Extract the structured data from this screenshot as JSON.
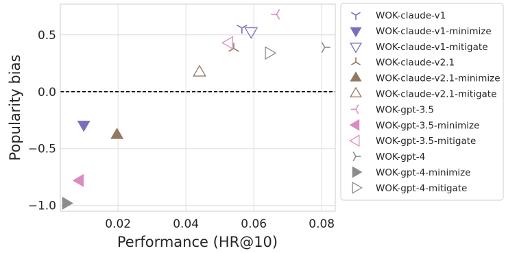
{
  "chart_data": {
    "type": "scatter",
    "title": "",
    "xlabel": "Performance (HR@10)",
    "ylabel": "Popularity bias",
    "xlim": [
      0.003,
      0.084
    ],
    "ylim": [
      -1.05,
      0.77
    ],
    "xticks": [
      0.02,
      0.04,
      0.06,
      0.08
    ],
    "xtick_labels": [
      "0.02",
      "0.04",
      "0.06",
      "0.08"
    ],
    "yticks": [
      -1.0,
      -0.5,
      0.0,
      0.5
    ],
    "ytick_labels": [
      "−1.0",
      "−0.5",
      "0.0",
      "0.5"
    ],
    "grid": true,
    "reference_line": {
      "y": 0.0,
      "style": "dashed",
      "color": "#000000"
    },
    "legend_position": "outside-right",
    "series": [
      {
        "name": "WOK-claude-v1",
        "marker": "tri_down",
        "filled": true,
        "color": "#7b6fbd",
        "x": 0.0565,
        "y": 0.56
      },
      {
        "name": "WOK-claude-v1-minimize",
        "marker": "triangle_down",
        "filled": true,
        "color": "#7b6fbd",
        "x": 0.0099,
        "y": -0.29
      },
      {
        "name": "WOK-claude-v1-mitigate",
        "marker": "triangle_down",
        "filled": false,
        "color": "#7b6fbd",
        "x": 0.0592,
        "y": 0.53
      },
      {
        "name": "WOK-claude-v2.1",
        "marker": "tri_up",
        "filled": true,
        "color": "#937860",
        "x": 0.0541,
        "y": 0.38
      },
      {
        "name": "WOK-claude-v2.1-minimize",
        "marker": "triangle_up",
        "filled": true,
        "color": "#937860",
        "x": 0.0197,
        "y": -0.38
      },
      {
        "name": "WOK-claude-v2.1-mitigate",
        "marker": "triangle_up",
        "filled": false,
        "color": "#937860",
        "x": 0.044,
        "y": 0.17
      },
      {
        "name": "WOK-gpt-3.5",
        "marker": "tri_left",
        "filled": true,
        "color": "#da8bc3",
        "x": 0.0667,
        "y": 0.68
      },
      {
        "name": "WOK-gpt-3.5-minimize",
        "marker": "triangle_left",
        "filled": true,
        "color": "#da8bc3",
        "x": 0.0087,
        "y": -0.78
      },
      {
        "name": "WOK-gpt-3.5-mitigate",
        "marker": "triangle_left",
        "filled": false,
        "color": "#da8bc3",
        "x": 0.0527,
        "y": 0.43
      },
      {
        "name": "WOK-gpt-4",
        "marker": "tri_right",
        "filled": true,
        "color": "#8c8c8c",
        "x": 0.0809,
        "y": 0.39
      },
      {
        "name": "WOK-gpt-4-minimize",
        "marker": "triangle_right",
        "filled": true,
        "color": "#8c8c8c",
        "x": 0.0047,
        "y": -0.98
      },
      {
        "name": "WOK-gpt-4-mitigate",
        "marker": "triangle_right",
        "filled": false,
        "color": "#8c8c8c",
        "x": 0.0645,
        "y": 0.34
      }
    ]
  }
}
